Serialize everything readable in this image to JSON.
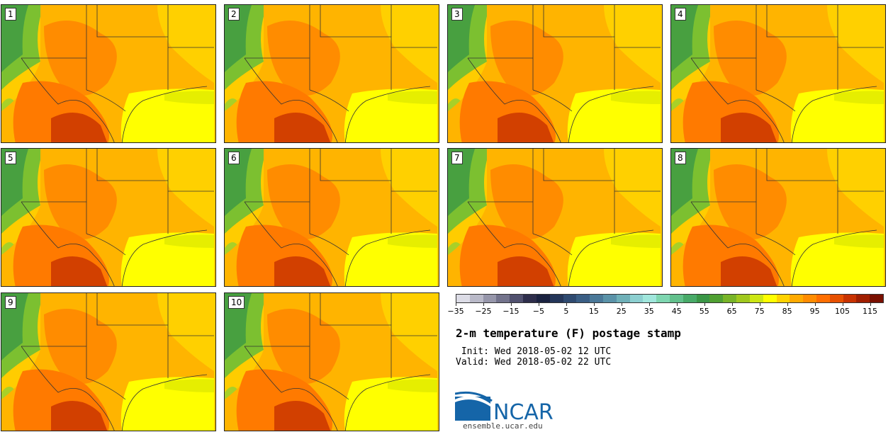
{
  "panels": [
    "1",
    "2",
    "3",
    "4",
    "5",
    "6",
    "7",
    "8",
    "9",
    "10"
  ],
  "colorbar": {
    "ticks": [
      "−35",
      "−25",
      "−15",
      "−5",
      "5",
      "15",
      "25",
      "35",
      "45",
      "55",
      "65",
      "75",
      "85",
      "95",
      "105",
      "115"
    ],
    "tick_values": [
      -35,
      -25,
      -15,
      -5,
      5,
      15,
      25,
      35,
      45,
      55,
      65,
      75,
      85,
      95,
      105,
      115
    ],
    "range": [
      -35,
      120
    ],
    "colors": [
      "#dcdce6",
      "#b9b9c8",
      "#9696aa",
      "#73738c",
      "#50506e",
      "#2d2d4b",
      "#1a2240",
      "#243659",
      "#2e4a70",
      "#3a5e84",
      "#4a7898",
      "#5a92a8",
      "#6fb0b8",
      "#8ccfd0",
      "#a0e6dc",
      "#7ed6b0",
      "#62c08c",
      "#48aa68",
      "#3a9646",
      "#50a032",
      "#78b428",
      "#a0c81e",
      "#cce614",
      "#ffff00",
      "#ffd200",
      "#ffaa00",
      "#ff8c00",
      "#ff6e00",
      "#e65000",
      "#c83200",
      "#a01e00",
      "#7a1000"
    ]
  },
  "title": "2-m temperature (F) postage stamp",
  "init": " Init: Wed 2018-05-02 12 UTC",
  "valid": "Valid: Wed 2018-05-02 22 UTC",
  "logo_text": "NCAR",
  "url": "ensemble.ucar.edu"
}
